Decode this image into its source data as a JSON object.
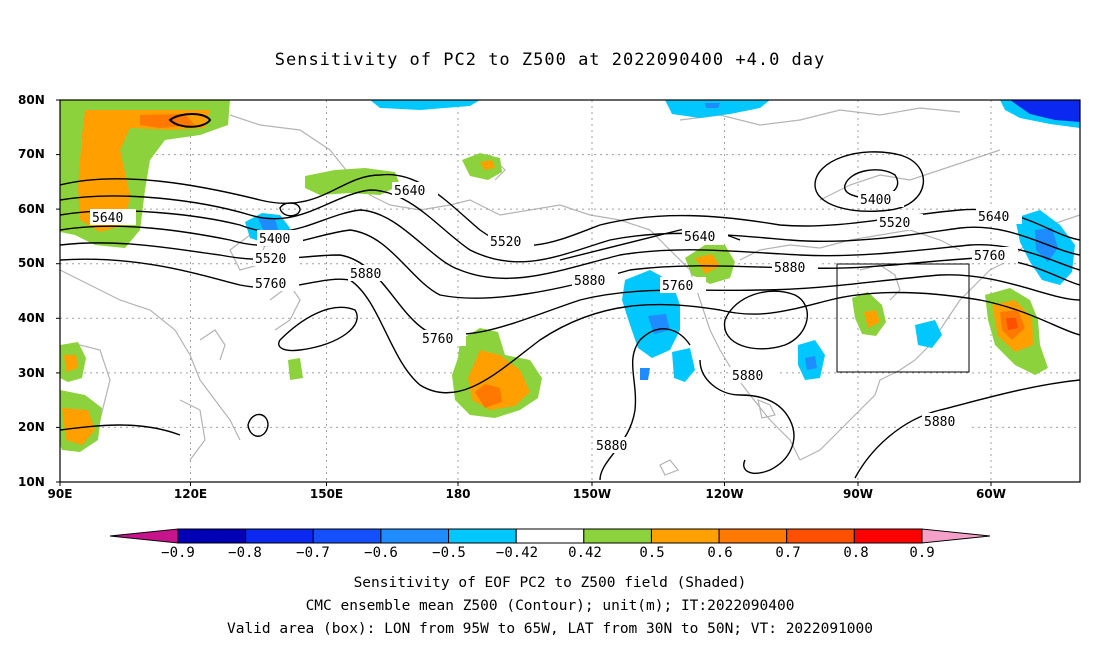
{
  "title": "Sensitivity of PC2 to Z500 at 2022090400 +4.0 day",
  "lat_labels": [
    "80N",
    "70N",
    "60N",
    "50N",
    "40N",
    "30N",
    "20N",
    "10N"
  ],
  "lon_labels": [
    "90E",
    "120E",
    "150E",
    "180",
    "150W",
    "120W",
    "90W",
    "60W"
  ],
  "contour_labels": [
    "5640",
    "5400",
    "5520",
    "5760",
    "5880",
    "5640",
    "5880",
    "5760",
    "5520",
    "5640",
    "5760",
    "5880",
    "5400",
    "5520",
    "5640",
    "5760",
    "5880",
    "5880",
    "5880"
  ],
  "colorbar": {
    "labels": [
      "−0.9",
      "−0.8",
      "−0.7",
      "−0.6",
      "−0.5",
      "−0.42",
      "0.42",
      "0.5",
      "0.6",
      "0.7",
      "0.8",
      "0.9"
    ],
    "colors": [
      "#0000b4",
      "#0a28f0",
      "#1450ff",
      "#1e8cff",
      "#00c8ff",
      "#ffffff",
      "#8cd23c",
      "#ffa000",
      "#ff7800",
      "#ff5000",
      "#ff0000"
    ],
    "under_color": "#c8148c",
    "over_color": "#f5a0c8"
  },
  "captions": {
    "line1": "Sensitivity of EOF PC2 to Z500 field (Shaded)",
    "line2": "CMC ensemble mean Z500 (Contour); unit(m); IT:2022090400",
    "line3": "Valid area (box): LON from 95W to 65W, LAT from 30N to 50N; VT: 2022091000"
  }
}
